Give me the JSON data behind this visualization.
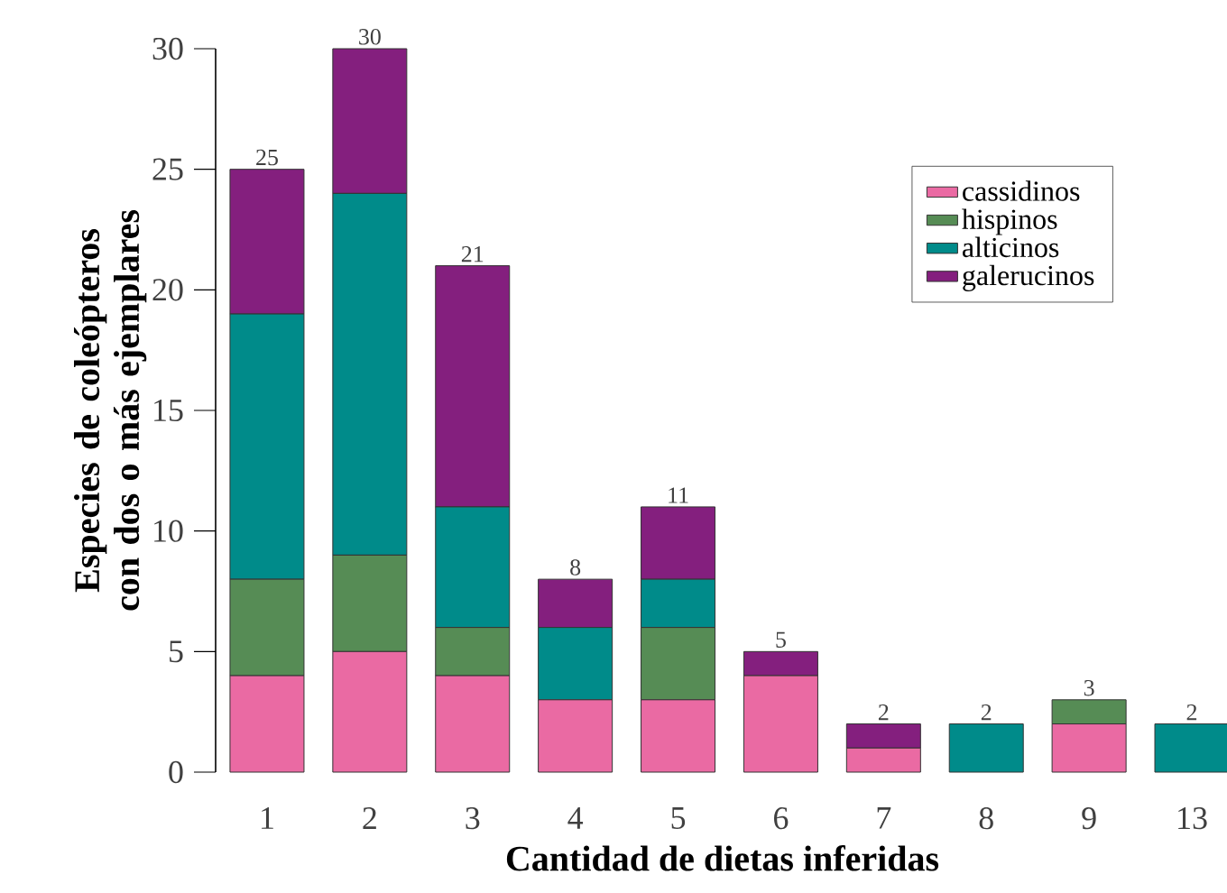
{
  "chart_data": {
    "type": "bar",
    "stacked": true,
    "xlabel": "Cantidad de dietas inferidas",
    "ylabel": "Especies de coleópteros con dos o más ejemplares",
    "categories": [
      "1",
      "2",
      "3",
      "4",
      "5",
      "6",
      "7",
      "8",
      "9",
      "13"
    ],
    "series": [
      {
        "name": "cassidinos",
        "color": "#ea6aa3",
        "values": [
          4,
          5,
          4,
          3,
          3,
          4,
          1,
          0,
          2,
          0
        ]
      },
      {
        "name": "hispinos",
        "color": "#568c55",
        "values": [
          4,
          4,
          2,
          0,
          3,
          0,
          0,
          0,
          1,
          0
        ]
      },
      {
        "name": "alticinos",
        "color": "#008b8a",
        "values": [
          11,
          15,
          5,
          3,
          2,
          0,
          0,
          2,
          0,
          2
        ]
      },
      {
        "name": "galerucinos",
        "color": "#841f7e",
        "values": [
          6,
          6,
          10,
          2,
          3,
          1,
          1,
          0,
          0,
          0
        ]
      }
    ],
    "totals": [
      "25",
      "30",
      "21",
      "8",
      "11",
      "5",
      "2",
      "2",
      "3",
      "2"
    ],
    "ylim": [
      0,
      30
    ],
    "yticks": [
      0,
      5,
      10,
      15,
      20,
      25,
      30
    ],
    "grid": false,
    "legend": "top right"
  }
}
